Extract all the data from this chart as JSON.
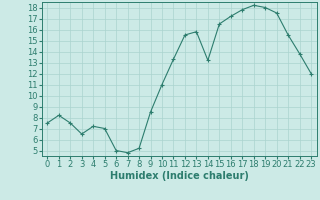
{
  "x": [
    0,
    1,
    2,
    3,
    4,
    5,
    6,
    7,
    8,
    9,
    10,
    11,
    12,
    13,
    14,
    15,
    16,
    17,
    18,
    19,
    20,
    21,
    22,
    23
  ],
  "y": [
    7.5,
    8.2,
    7.5,
    6.5,
    7.2,
    7.0,
    5.0,
    4.8,
    5.2,
    8.5,
    11.0,
    13.3,
    15.5,
    15.8,
    13.2,
    16.5,
    17.2,
    17.8,
    18.2,
    18.0,
    17.5,
    15.5,
    13.8,
    12.0
  ],
  "xlabel": "Humidex (Indice chaleur)",
  "xlim": [
    -0.5,
    23.5
  ],
  "ylim": [
    4.5,
    18.5
  ],
  "yticks": [
    5,
    6,
    7,
    8,
    9,
    10,
    11,
    12,
    13,
    14,
    15,
    16,
    17,
    18
  ],
  "xticks": [
    0,
    1,
    2,
    3,
    4,
    5,
    6,
    7,
    8,
    9,
    10,
    11,
    12,
    13,
    14,
    15,
    16,
    17,
    18,
    19,
    20,
    21,
    22,
    23
  ],
  "line_color": "#2d7d6e",
  "marker": "+",
  "bg_color": "#cceae6",
  "grid_color": "#aad4cf",
  "axis_color": "#2d7d6e",
  "xlabel_fontsize": 7,
  "tick_fontsize": 6
}
